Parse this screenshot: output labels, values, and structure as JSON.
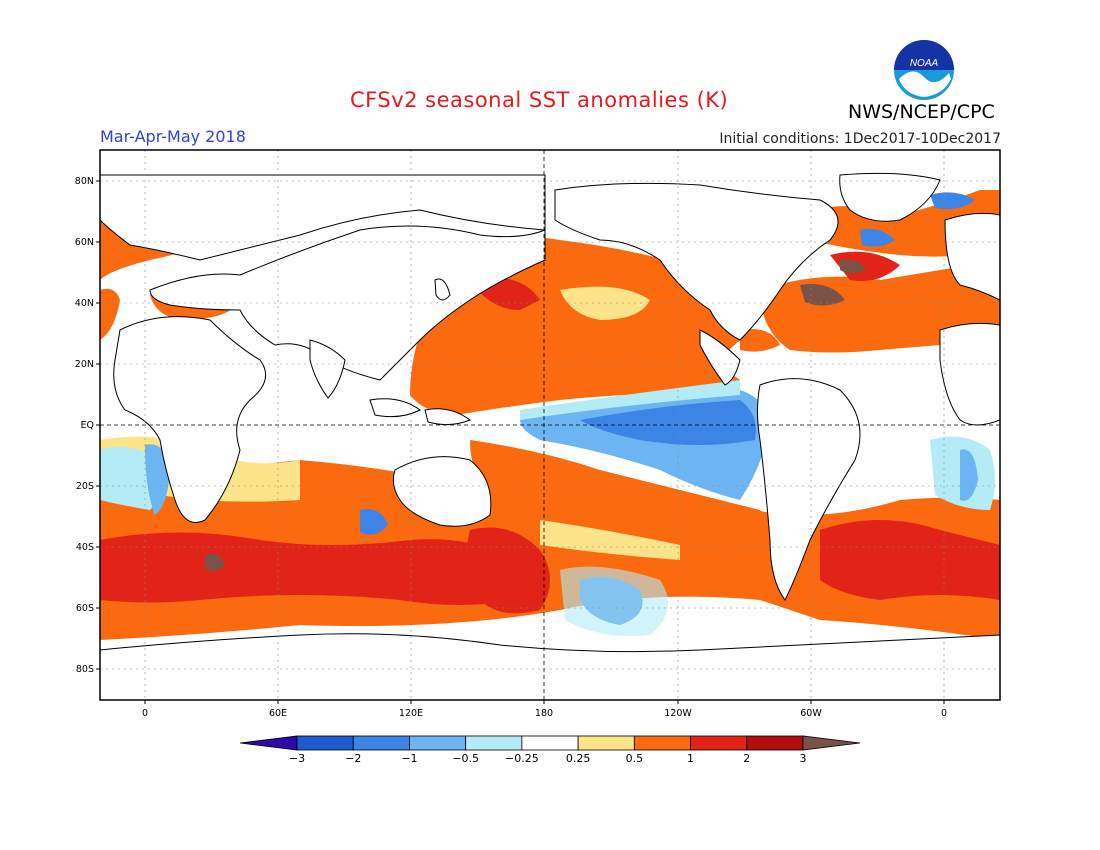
{
  "header": {
    "title": "CFSv2 seasonal SST anomalies (K)",
    "organization": "NWS/NCEP/CPC",
    "logo_text": "NOAA",
    "period": "Mar-Apr-May 2018",
    "initial_conditions": "Initial conditions: 1Dec2017-10Dec2017"
  },
  "map": {
    "lat_labels": [
      "80N",
      "60N",
      "40N",
      "20N",
      "EQ",
      "20S",
      "40S",
      "60S",
      "80S"
    ],
    "lon_labels": [
      "0",
      "60E",
      "120E",
      "180",
      "120W",
      "60W",
      "0"
    ]
  },
  "colorbar": {
    "labels": [
      "-3",
      "-2",
      "-1",
      "-0.5",
      "-0.25",
      "0.25",
      "0.5",
      "1",
      "2",
      "3"
    ],
    "colors": [
      "#2b0aa8",
      "#1f5bd0",
      "#3c84e6",
      "#6db5f2",
      "#b3ecf6",
      "#ffffff",
      "#fde48a",
      "#fb6a0f",
      "#e22418",
      "#b00d0d",
      "#7a5348"
    ]
  },
  "colors": {
    "title": "#e8191e",
    "period": "#2f3fe0",
    "land_outline": "#000000",
    "ocean": "#ffffff"
  }
}
